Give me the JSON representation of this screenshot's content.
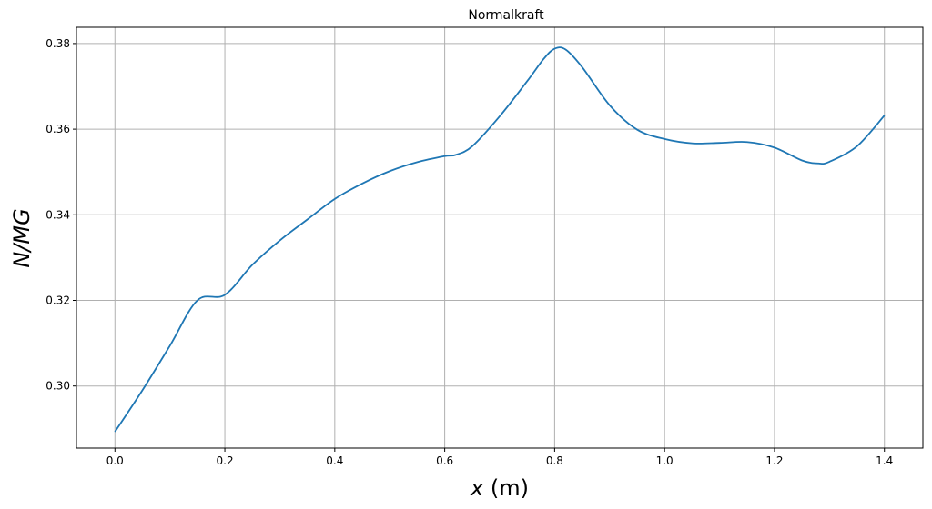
{
  "chart_data": {
    "type": "line",
    "title": "Normalkraft",
    "xlabel_var": "x",
    "xlabel_unit": " (m)",
    "ylabel": "N/MG",
    "xlim": [
      -0.07,
      1.47
    ],
    "ylim": [
      0.2855,
      0.3838
    ],
    "xticks": [
      0.0,
      0.2,
      0.4,
      0.6,
      0.8,
      1.0,
      1.2,
      1.4
    ],
    "xtick_labels": [
      "0.0",
      "0.2",
      "0.4",
      "0.6",
      "0.8",
      "1.0",
      "1.2",
      "1.4"
    ],
    "yticks": [
      0.3,
      0.32,
      0.34,
      0.36,
      0.38
    ],
    "ytick_labels": [
      "0.30",
      "0.32",
      "0.34",
      "0.36",
      "0.38"
    ],
    "grid": true,
    "line_color": "#1f77b4",
    "grid_color": "#b0b0b0",
    "series": [
      {
        "x": [
          0.0,
          0.05,
          0.1,
          0.15,
          0.2,
          0.25,
          0.3,
          0.35,
          0.4,
          0.45,
          0.5,
          0.55,
          0.6,
          0.62,
          0.65,
          0.7,
          0.75,
          0.78,
          0.8,
          0.82,
          0.85,
          0.9,
          0.95,
          1.0,
          1.05,
          1.1,
          1.15,
          1.2,
          1.25,
          1.28,
          1.3,
          1.35,
          1.4
        ],
        "y": [
          0.2893,
          0.299,
          0.3094,
          0.32,
          0.3213,
          0.3283,
          0.334,
          0.3389,
          0.3437,
          0.3473,
          0.3502,
          0.3523,
          0.3537,
          0.354,
          0.356,
          0.363,
          0.3712,
          0.3764,
          0.3788,
          0.3786,
          0.3745,
          0.3656,
          0.3599,
          0.3577,
          0.3567,
          0.3568,
          0.357,
          0.3557,
          0.3527,
          0.352,
          0.3524,
          0.356,
          0.3632
        ]
      }
    ]
  }
}
